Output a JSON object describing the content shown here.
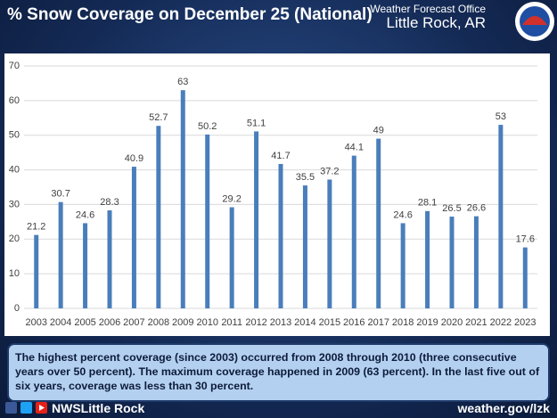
{
  "header": {
    "title": "% Snow Coverage on December 25 (National)",
    "office": "Weather Forecast Office",
    "location": "Little Rock, AR"
  },
  "chart_data": {
    "type": "bar",
    "categories": [
      "2003",
      "2004",
      "2005",
      "2006",
      "2007",
      "2008",
      "2009",
      "2010",
      "2011",
      "2012",
      "2013",
      "2014",
      "2015",
      "2016",
      "2017",
      "2018",
      "2019",
      "2020",
      "2021",
      "2022",
      "2023"
    ],
    "values": [
      21.2,
      30.7,
      24.6,
      28.3,
      40.9,
      52.7,
      63,
      50.2,
      29.2,
      51.1,
      41.7,
      35.5,
      37.2,
      44.1,
      49,
      24.6,
      28.1,
      26.5,
      26.6,
      53,
      17.6
    ],
    "color": "#4a7ebb",
    "ylim": [
      0,
      70
    ],
    "yticks": [
      0,
      10,
      20,
      30,
      40,
      50,
      60,
      70
    ],
    "grid": true
  },
  "caption": "The highest percent coverage (since 2003) occurred from 2008 through 2010 (three consecutive years over 50 percent). The maximum coverage happened in 2009 (63 percent). In the last five out of six years, coverage was less than 30 percent.",
  "footer": {
    "social": "NWSLittle Rock",
    "website": "weather.gov/lzk"
  }
}
